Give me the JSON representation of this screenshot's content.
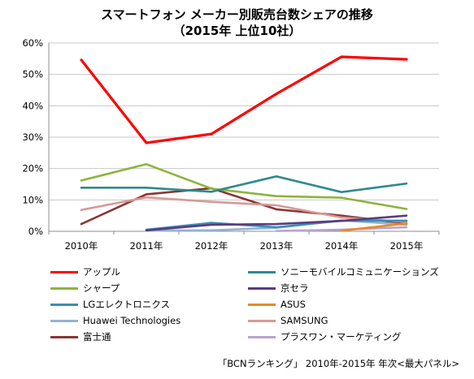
{
  "chart_data": {
    "type": "line",
    "title": "スマートフォン メーカー別販売台数シェアの推移",
    "subtitle": "（2015年 上位10社）",
    "x": [
      "2010年",
      "2011年",
      "2012年",
      "2013年",
      "2014年",
      "2015年"
    ],
    "y_ticks": [
      "0%",
      "10%",
      "20%",
      "30%",
      "40%",
      "50%",
      "60%"
    ],
    "ylim": [
      0,
      60
    ],
    "grid": "horizontal",
    "legend_position": "bottom",
    "series": [
      {
        "name": "アップル",
        "color": "#ff0000",
        "values": [
          54.6,
          28.2,
          31.0,
          43.8,
          55.6,
          54.8
        ]
      },
      {
        "name": "ソニーモバイルコミュニケーションズ",
        "color": "#2e8b8e",
        "values": [
          13.9,
          13.9,
          12.6,
          17.5,
          12.5,
          15.2
        ]
      },
      {
        "name": "シャープ",
        "color": "#8db43d",
        "values": [
          16.2,
          21.4,
          13.6,
          11.2,
          10.7,
          7.1
        ]
      },
      {
        "name": "京セラ",
        "color": "#5b3b7e",
        "values": [
          null,
          0.3,
          2.1,
          2.3,
          3.3,
          5.0
        ]
      },
      {
        "name": "LGエレクトロニクス",
        "color": "#3a8fb5",
        "values": [
          null,
          0.5,
          2.7,
          1.3,
          3.4,
          3.4
        ]
      },
      {
        "name": "ASUS",
        "color": "#e88a2a",
        "values": [
          null,
          null,
          null,
          null,
          0.2,
          2.5
        ]
      },
      {
        "name": "Huawei Technologies",
        "color": "#94b2d6",
        "values": [
          null,
          0.2,
          0.3,
          1.1,
          3.5,
          2.1
        ]
      },
      {
        "name": "SAMSUNG",
        "color": "#d69a96",
        "values": [
          6.8,
          10.8,
          9.4,
          8.3,
          4.4,
          3.0
        ]
      },
      {
        "name": "富士通",
        "color": "#8a3535",
        "values": [
          2.3,
          11.8,
          13.7,
          7.0,
          5.0,
          2.4
        ]
      },
      {
        "name": "プラスワン・マーケティング",
        "color": "#b8a3cf",
        "values": [
          null,
          null,
          null,
          0.1,
          0.5,
          1.3
        ]
      }
    ]
  },
  "source": "「BCNランキング」 2010年-2015年 年次<最大パネル>"
}
